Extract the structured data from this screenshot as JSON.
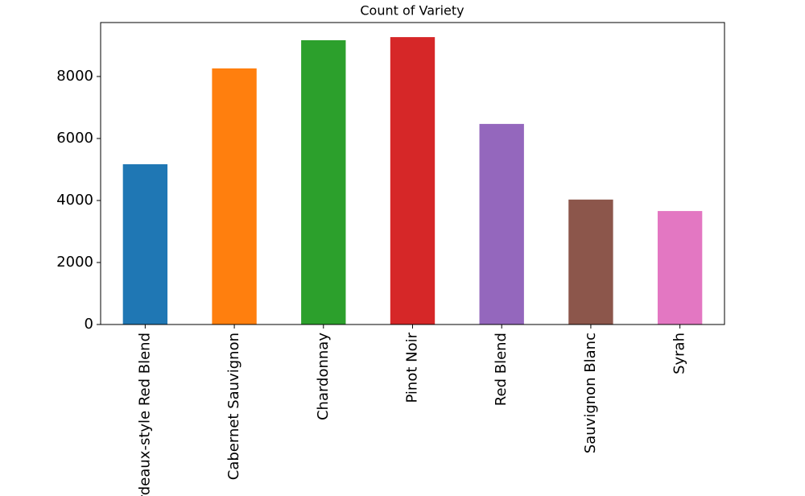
{
  "chart_data": {
    "type": "bar",
    "title": "Count of Variety",
    "categories": [
      "Bordeaux-style Red Blend",
      "Cabernet Sauvignon",
      "Chardonnay",
      "Pinot Noir",
      "Red Blend",
      "Sauvignon Blanc",
      "Syrah"
    ],
    "values": [
      5170,
      8260,
      9170,
      9270,
      6470,
      4030,
      3660
    ],
    "colors": [
      "#1f77b4",
      "#ff7f0e",
      "#2ca02c",
      "#d62728",
      "#9467bd",
      "#8c564b",
      "#e377c2"
    ],
    "ylim": [
      0,
      9740
    ],
    "yticks": [
      0,
      2000,
      4000,
      6000,
      8000
    ],
    "grid": false
  }
}
